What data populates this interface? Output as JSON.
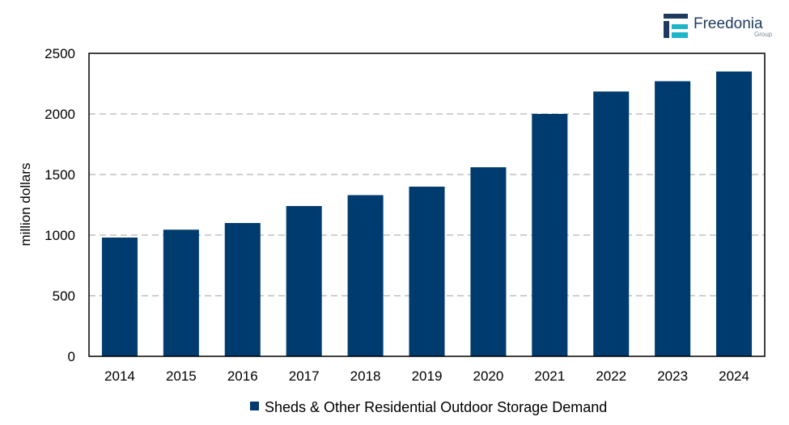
{
  "logo": {
    "name": "Freedonia",
    "sub": "Group",
    "colors": {
      "navy": "#1f3a5f",
      "teal": "#1fb5c9"
    }
  },
  "chart_data": {
    "type": "bar",
    "categories": [
      "2014",
      "2015",
      "2016",
      "2017",
      "2018",
      "2019",
      "2020",
      "2021",
      "2022",
      "2023",
      "2024"
    ],
    "series": [
      {
        "name": "Sheds & Other Residential Outdoor Storage Demand",
        "color": "#003b6f",
        "values": [
          980,
          1045,
          1100,
          1240,
          1330,
          1400,
          1560,
          2000,
          2185,
          2270,
          2350
        ]
      }
    ],
    "xlabel": "",
    "ylabel": "million dollars",
    "ylim": [
      0,
      2500
    ],
    "yticks": [
      0,
      500,
      1000,
      1500,
      2000,
      2500
    ],
    "grid": "horizontal dashed",
    "legend_position": "bottom"
  }
}
